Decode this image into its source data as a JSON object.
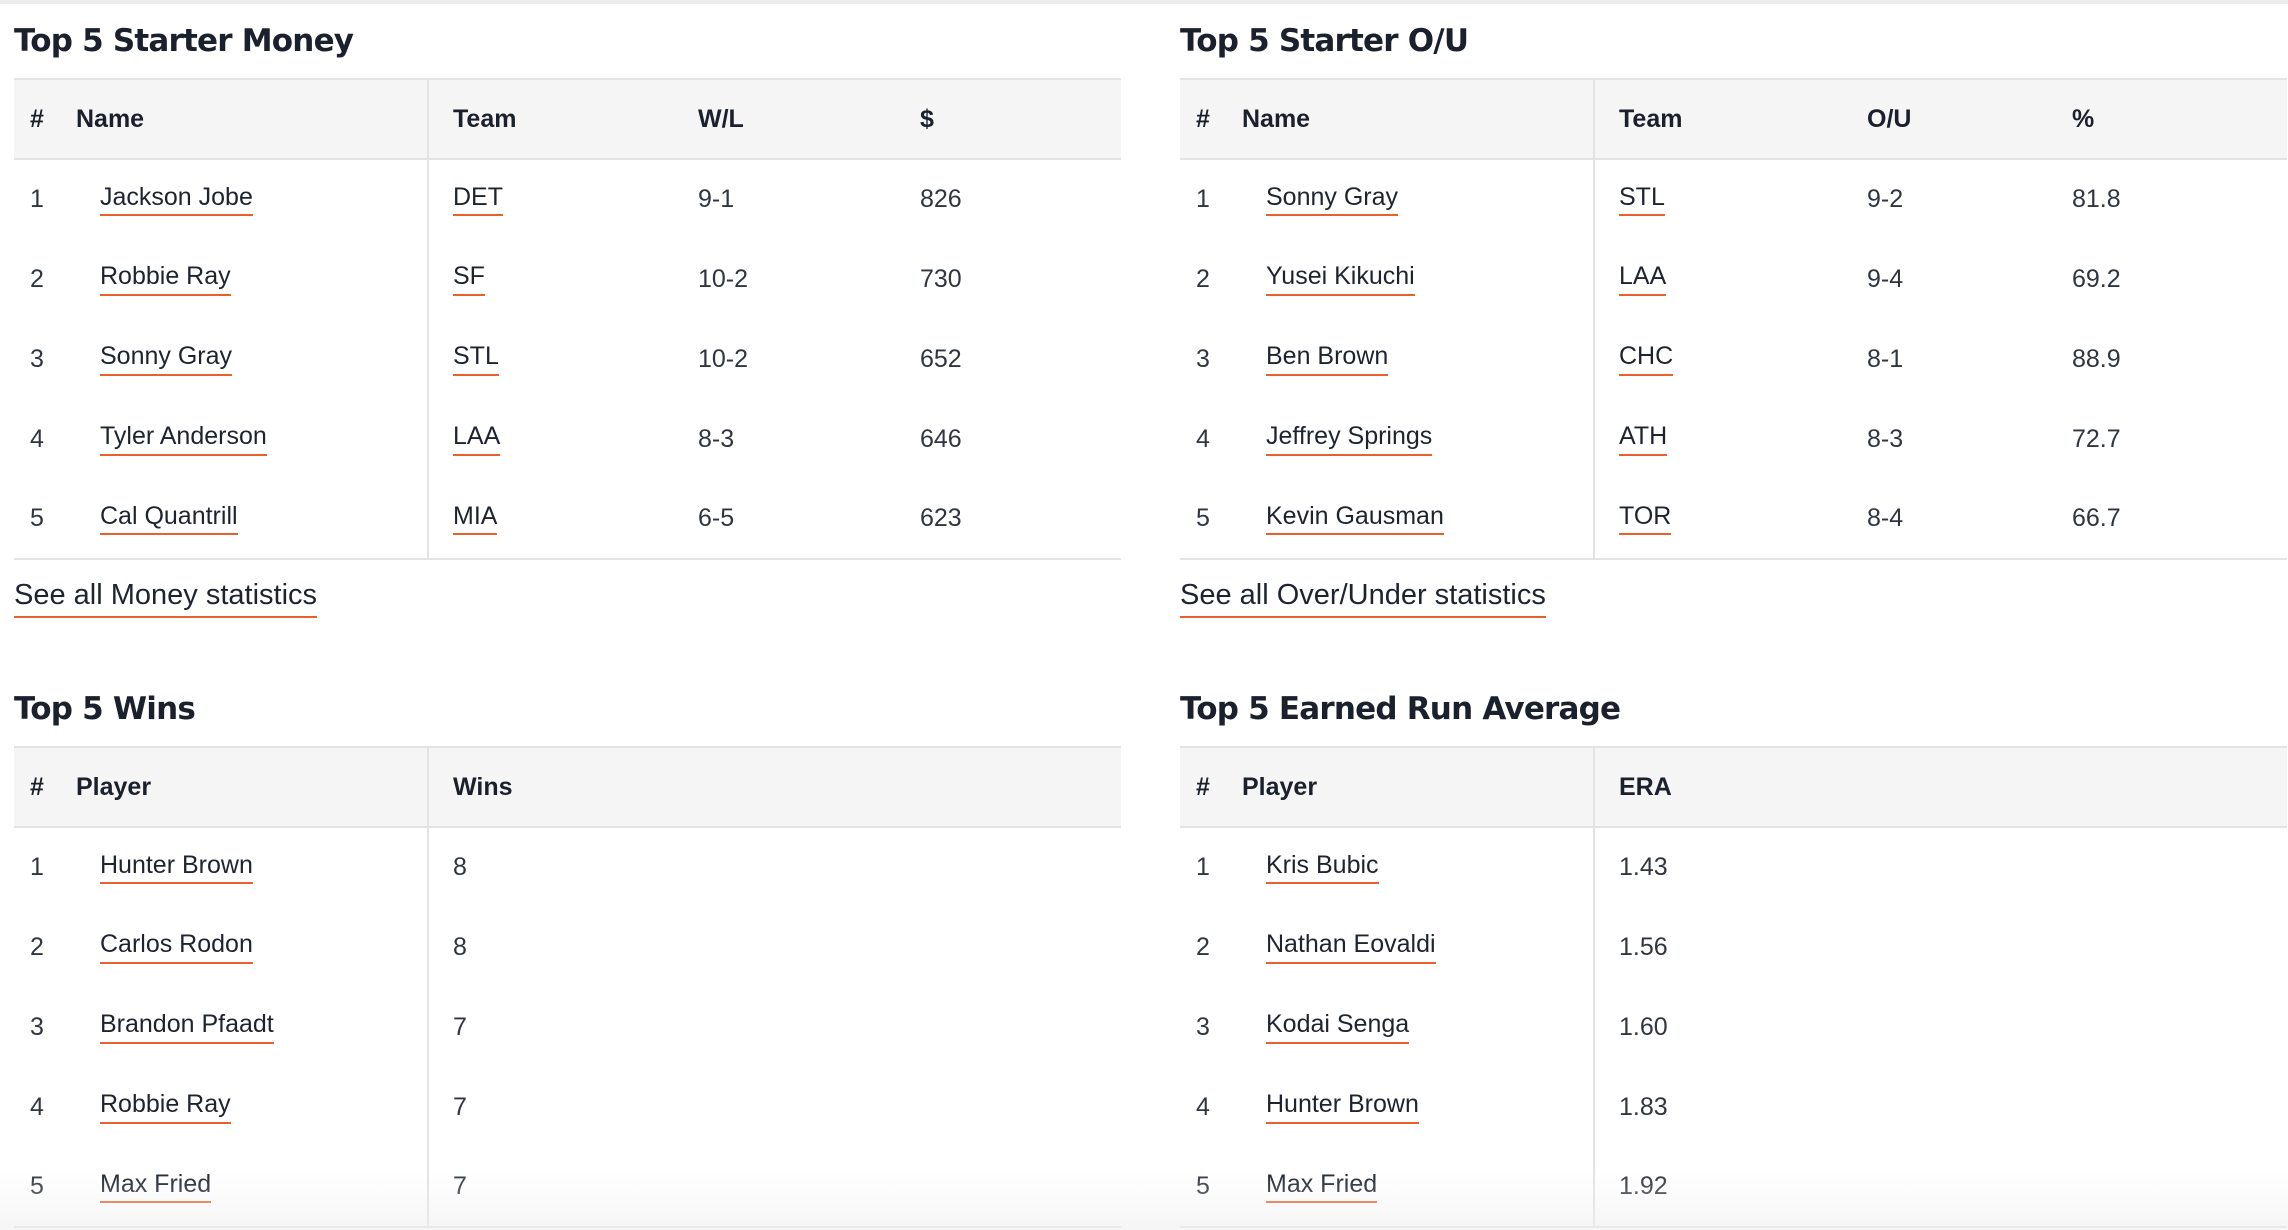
{
  "money": {
    "title": "Top 5 Starter Money",
    "headers": {
      "rank": "#",
      "name": "Name",
      "team": "Team",
      "record": "W/L",
      "amount": "$"
    },
    "rows": [
      {
        "rank": "1",
        "name": "Jackson Jobe",
        "team": "DET",
        "record": "9-1",
        "amount": "826"
      },
      {
        "rank": "2",
        "name": "Robbie Ray",
        "team": "SF",
        "record": "10-2",
        "amount": "730"
      },
      {
        "rank": "3",
        "name": "Sonny Gray",
        "team": "STL",
        "record": "10-2",
        "amount": "652"
      },
      {
        "rank": "4",
        "name": "Tyler Anderson",
        "team": "LAA",
        "record": "8-3",
        "amount": "646"
      },
      {
        "rank": "5",
        "name": "Cal Quantrill",
        "team": "MIA",
        "record": "6-5",
        "amount": "623"
      }
    ],
    "see_all": "See all Money statistics"
  },
  "ou": {
    "title": "Top 5 Starter O/U",
    "headers": {
      "rank": "#",
      "name": "Name",
      "team": "Team",
      "record": "O/U",
      "pct": "%"
    },
    "rows": [
      {
        "rank": "1",
        "name": "Sonny Gray",
        "team": "STL",
        "record": "9-2",
        "pct": "81.8"
      },
      {
        "rank": "2",
        "name": "Yusei Kikuchi",
        "team": "LAA",
        "record": "9-4",
        "pct": "69.2"
      },
      {
        "rank": "3",
        "name": "Ben Brown",
        "team": "CHC",
        "record": "8-1",
        "pct": "88.9"
      },
      {
        "rank": "4",
        "name": "Jeffrey Springs",
        "team": "ATH",
        "record": "8-3",
        "pct": "72.7"
      },
      {
        "rank": "5",
        "name": "Kevin Gausman",
        "team": "TOR",
        "record": "8-4",
        "pct": "66.7"
      }
    ],
    "see_all": "See all Over/Under statistics"
  },
  "wins": {
    "title": "Top 5 Wins",
    "headers": {
      "rank": "#",
      "player": "Player",
      "value": "Wins"
    },
    "rows": [
      {
        "rank": "1",
        "player": "Hunter Brown",
        "value": "8"
      },
      {
        "rank": "2",
        "player": "Carlos Rodon",
        "value": "8"
      },
      {
        "rank": "3",
        "player": "Brandon Pfaadt",
        "value": "7"
      },
      {
        "rank": "4",
        "player": "Robbie Ray",
        "value": "7"
      },
      {
        "rank": "5",
        "player": "Max Fried",
        "value": "7"
      }
    ]
  },
  "era": {
    "title": "Top 5 Earned Run Average",
    "headers": {
      "rank": "#",
      "player": "Player",
      "value": "ERA"
    },
    "rows": [
      {
        "rank": "1",
        "player": "Kris Bubic",
        "value": "1.43"
      },
      {
        "rank": "2",
        "player": "Nathan Eovaldi",
        "value": "1.56"
      },
      {
        "rank": "3",
        "player": "Kodai Senga",
        "value": "1.60"
      },
      {
        "rank": "4",
        "player": "Hunter Brown",
        "value": "1.83"
      },
      {
        "rank": "5",
        "player": "Max Fried",
        "value": "1.92"
      }
    ]
  },
  "colors": {
    "accent_underline": "#e8602b",
    "header_bg": "#f5f5f5",
    "border": "#e3e3e3"
  }
}
